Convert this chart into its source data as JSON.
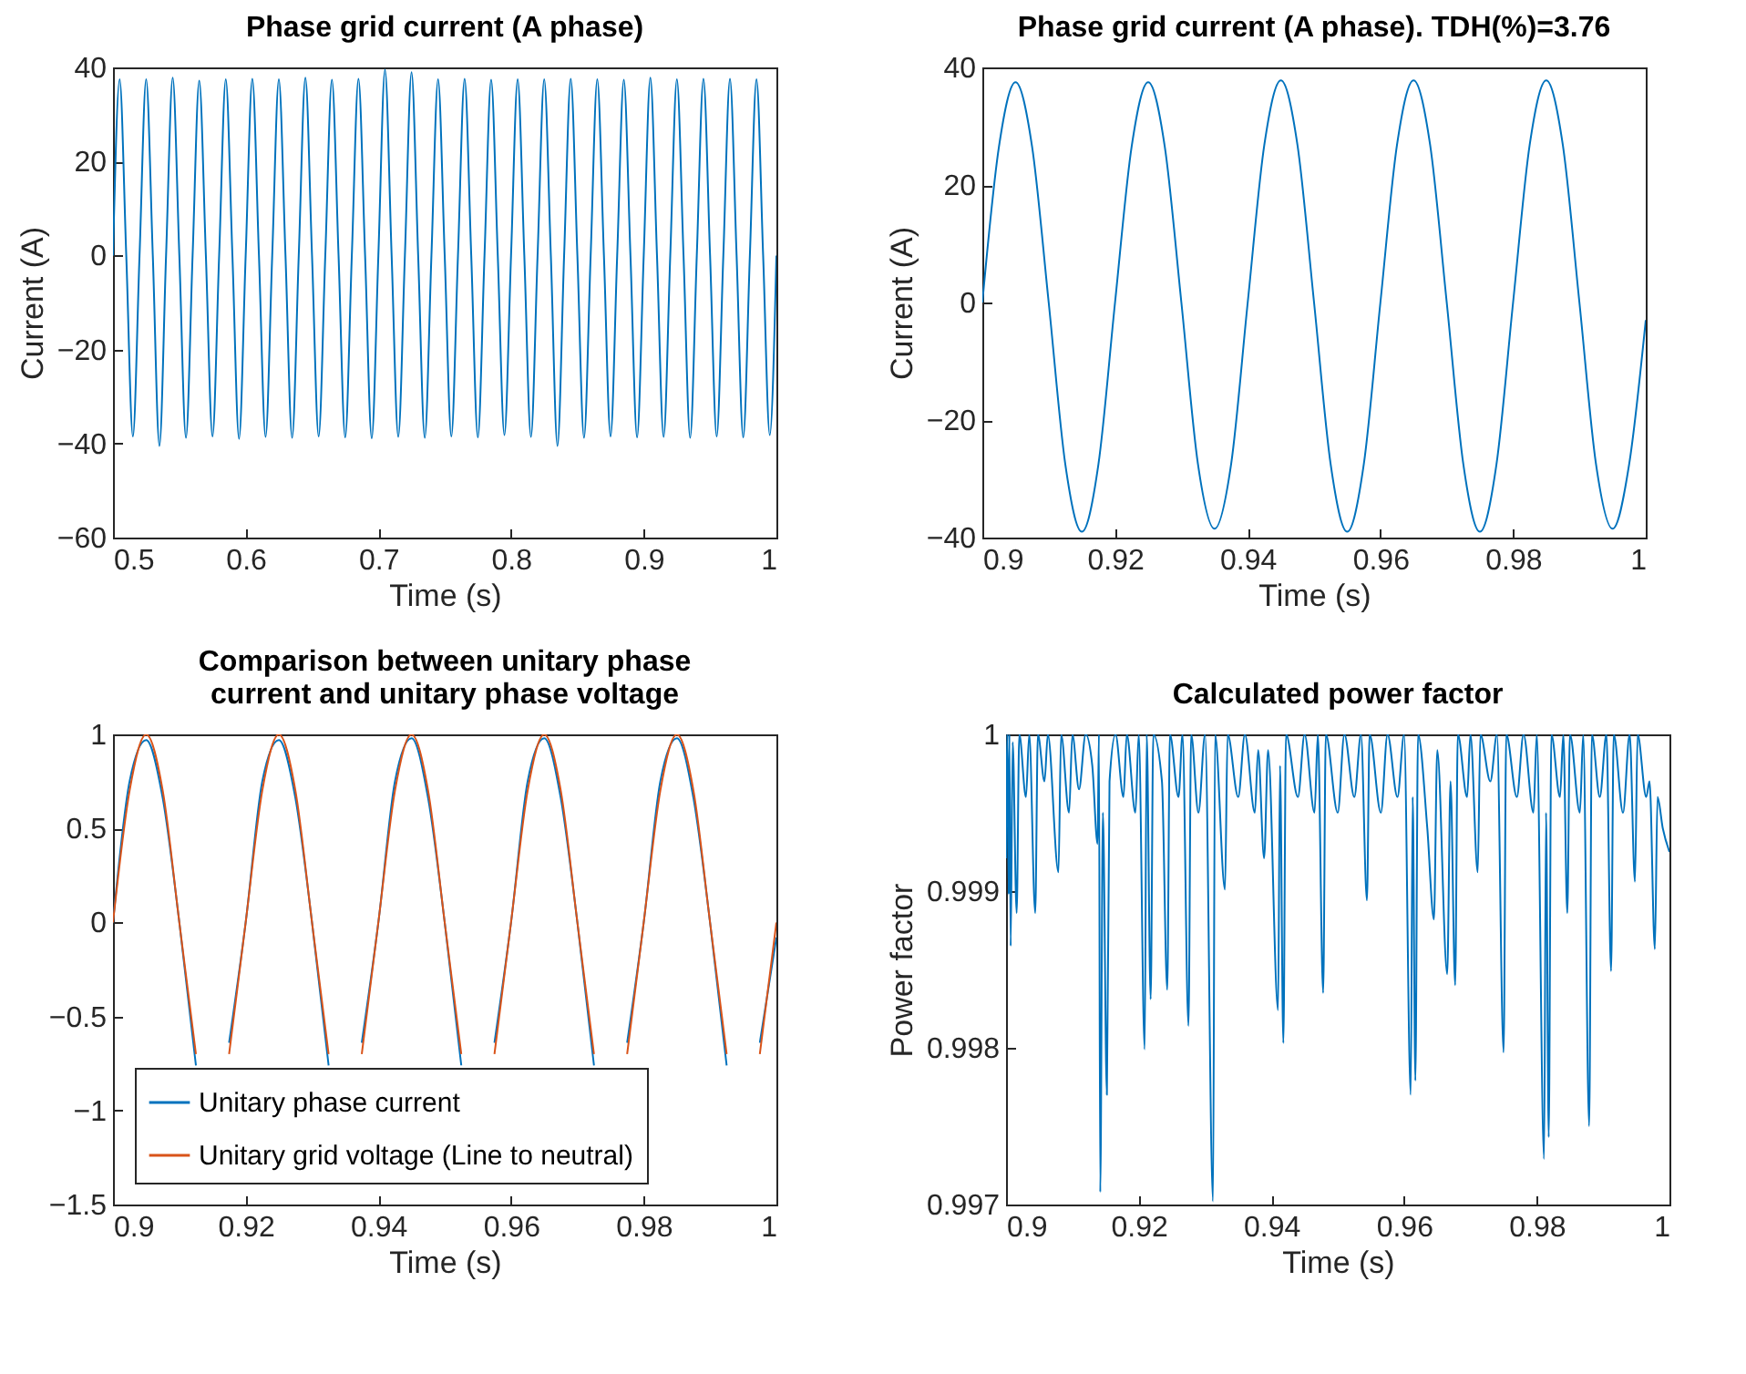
{
  "chart_data": [
    {
      "type": "line",
      "title": "Phase grid current (A phase)",
      "xlabel": "Time (s)",
      "ylabel": "Current (A)",
      "x": [
        0.5,
        0.505,
        0.51,
        0.515,
        0.52,
        0.525,
        0.53,
        0.535,
        0.54,
        0.545,
        0.55,
        0.555,
        0.56,
        0.565,
        0.57,
        0.575,
        0.58,
        0.585,
        0.59,
        0.595,
        0.6,
        0.605,
        0.61,
        0.615,
        0.62,
        0.625,
        0.63,
        0.635,
        0.64,
        0.645,
        0.65,
        0.655,
        0.66,
        0.665,
        0.67,
        0.675,
        0.68,
        0.685,
        0.69,
        0.695,
        0.7,
        0.705,
        0.71,
        0.715,
        0.72,
        0.725,
        0.73,
        0.735,
        0.74,
        0.745,
        0.75,
        0.755,
        0.76,
        0.765,
        0.77,
        0.775,
        0.78,
        0.785,
        0.79,
        0.795,
        0.8,
        0.805,
        0.81,
        0.815,
        0.82,
        0.825,
        0.83,
        0.835,
        0.84,
        0.845,
        0.85,
        0.855,
        0.86,
        0.865,
        0.87,
        0.875,
        0.88,
        0.885,
        0.89,
        0.895,
        0.9,
        0.905,
        0.91,
        0.915,
        0.92,
        0.925,
        0.93,
        0.935,
        0.94,
        0.945,
        0.95,
        0.955,
        0.96,
        0.965,
        0.97,
        0.975,
        0.98,
        0.985,
        0.99,
        0.995,
        1
      ],
      "series": [
        {
          "color": "#0072bd",
          "values": [
            0,
            37.5,
            0,
            -38.5,
            0,
            37.5,
            0,
            -40.5,
            0,
            37.8,
            0,
            -38.8,
            0,
            37.2,
            0,
            -38.5,
            0,
            37.5,
            0,
            -39,
            0,
            37.6,
            0,
            -38.6,
            0,
            37.5,
            0,
            -38.8,
            0,
            37.8,
            0,
            -38.5,
            0,
            37.4,
            0,
            -38.7,
            0,
            37.6,
            0,
            -38.9,
            0,
            39.5,
            0,
            -38.6,
            0,
            39,
            0,
            -38.8,
            0,
            37.5,
            0,
            -38.5,
            0,
            37.6,
            0,
            -38.7,
            0,
            37.4,
            0,
            -38.2,
            0,
            37.5,
            0,
            -38.6,
            0,
            37.5,
            0,
            -40.5,
            0,
            37.6,
            0,
            -38.8,
            0,
            37.5,
            0,
            -38.5,
            0,
            37.4,
            0,
            -38.7,
            0,
            37.8,
            0,
            -38.6,
            0,
            37.5,
            0,
            -38.8,
            0,
            37.6,
            0,
            -38.5,
            0,
            37.6,
            0,
            -38.7,
            0,
            37.5,
            0,
            -38.2,
            0
          ]
        }
      ],
      "xlim": [
        0.5,
        1
      ],
      "xticks": [
        0.5,
        0.6,
        0.7,
        0.8,
        0.9,
        1
      ],
      "ylim": [
        -60,
        40
      ],
      "yticks": [
        -60,
        -40,
        -20,
        0,
        20,
        40
      ]
    },
    {
      "type": "line",
      "title": "Phase grid current (A phase). TDH(%)=3.76",
      "xlabel": "Time (s)",
      "ylabel": "Current (A)",
      "x": [
        0.9,
        0.9025,
        0.905,
        0.9075,
        0.91,
        0.9125,
        0.915,
        0.9175,
        0.92,
        0.9225,
        0.925,
        0.9275,
        0.93,
        0.9325,
        0.935,
        0.9375,
        0.94,
        0.9425,
        0.945,
        0.9475,
        0.95,
        0.9525,
        0.955,
        0.9575,
        0.96,
        0.9625,
        0.965,
        0.9675,
        0.97,
        0.9725,
        0.975,
        0.9775,
        0.98,
        0.9825,
        0.985,
        0.9875,
        0.99,
        0.9925,
        0.995,
        0.9975,
        1
      ],
      "series": [
        {
          "color": "#0072bd",
          "values": [
            0,
            26.5,
            37.5,
            26.5,
            0,
            -27.5,
            -39,
            -27.5,
            0,
            26.5,
            37.5,
            26.5,
            0,
            -27.5,
            -38.5,
            -27.5,
            0,
            26.8,
            37.8,
            26.8,
            0,
            -27.5,
            -39,
            -27.5,
            0,
            26.8,
            37.8,
            26.8,
            0,
            -27.5,
            -39,
            -27.5,
            0,
            26.8,
            37.8,
            26.8,
            0,
            -27.5,
            -38.5,
            -27.5,
            -3
          ]
        }
      ],
      "xlim": [
        0.9,
        1
      ],
      "xticks": [
        0.9,
        0.92,
        0.94,
        0.96,
        0.98,
        1
      ],
      "ylim": [
        -40,
        40
      ],
      "yticks": [
        -40,
        -20,
        0,
        20,
        40
      ]
    },
    {
      "type": "line",
      "title": "Comparison between unitary phase\ncurrent and unitary phase voltage",
      "xlabel": "Time (s)",
      "legend": "bottom left",
      "x": [
        0.9,
        0.9025,
        0.905,
        0.9075,
        0.91,
        0.9125,
        0.915,
        0.9175,
        0.92,
        0.9225,
        0.925,
        0.9275,
        0.93,
        0.9325,
        0.935,
        0.9375,
        0.94,
        0.9425,
        0.945,
        0.9475,
        0.95,
        0.9525,
        0.955,
        0.9575,
        0.96,
        0.9625,
        0.965,
        0.9675,
        0.97,
        0.9725,
        0.975,
        0.9775,
        0.98,
        0.9825,
        0.985,
        0.9875,
        0.99,
        0.9925,
        0.995,
        0.9975,
        1
      ],
      "series": [
        {
          "name": "Unitary phase current",
          "color": "#0072bd",
          "values": [
            0,
            0.75,
            0.97,
            0.66,
            0,
            -0.76,
            null,
            -0.64,
            0,
            0.75,
            0.97,
            0.66,
            0,
            -0.76,
            null,
            -0.64,
            0,
            0.75,
            0.98,
            0.66,
            0,
            -0.76,
            null,
            -0.64,
            0,
            0.75,
            0.98,
            0.66,
            0,
            -0.76,
            null,
            -0.64,
            0,
            0.75,
            0.98,
            0.66,
            0,
            -0.76,
            null,
            -0.64,
            -0.08
          ]
        },
        {
          "name": "Unitary grid voltage (Line to neutral)",
          "color": "#d95319",
          "values": [
            0,
            0.7,
            1,
            0.7,
            0,
            -0.7,
            null,
            -0.7,
            0,
            0.7,
            1,
            0.7,
            0,
            -0.7,
            null,
            -0.7,
            0,
            0.7,
            1,
            0.7,
            0,
            -0.7,
            null,
            -0.7,
            0,
            0.7,
            1,
            0.7,
            0,
            -0.7,
            null,
            -0.7,
            0,
            0.7,
            1,
            0.7,
            0,
            -0.7,
            null,
            -0.7,
            0
          ]
        }
      ],
      "xlim": [
        0.9,
        1
      ],
      "xticks": [
        0.9,
        0.92,
        0.94,
        0.96,
        0.98,
        1
      ],
      "ylim": [
        -1.5,
        1
      ],
      "yticks": [
        -1.5,
        -1,
        -0.5,
        0,
        0.5,
        1
      ]
    },
    {
      "type": "line",
      "title": "Calculated power factor",
      "xlabel": "Time (s)",
      "ylabel": "Power factor",
      "x": [
        0.9,
        0.9002,
        0.9004,
        0.9005,
        0.9007,
        0.901,
        0.9016,
        0.902,
        0.903,
        0.9035,
        0.9044,
        0.9048,
        0.9058,
        0.9063,
        0.9079,
        0.9083,
        0.9095,
        0.91,
        0.911,
        0.912,
        0.913,
        0.9138,
        0.914,
        0.9142,
        0.9146,
        0.9152,
        0.9156,
        0.9165,
        0.9177,
        0.9182,
        0.9195,
        0.92,
        0.9209,
        0.9212,
        0.9218,
        0.9222,
        0.9235,
        0.9243,
        0.9247,
        0.926,
        0.9266,
        0.9275,
        0.9279,
        0.929,
        0.93,
        0.9312,
        0.9315,
        0.933,
        0.9334,
        0.935,
        0.936,
        0.9375,
        0.938,
        0.9389,
        0.9395,
        0.941,
        0.9413,
        0.9418,
        0.9422,
        0.944,
        0.945,
        0.9465,
        0.947,
        0.9478,
        0.9482,
        0.95,
        0.951,
        0.9525,
        0.9535,
        0.9544,
        0.9548,
        0.9565,
        0.9575,
        0.959,
        0.96,
        0.961,
        0.9613,
        0.9617,
        0.9621,
        0.9635,
        0.9645,
        0.965,
        0.9665,
        0.967,
        0.9677,
        0.9681,
        0.9695,
        0.97,
        0.9711,
        0.9715,
        0.973,
        0.974,
        0.975,
        0.9754,
        0.977,
        0.978,
        0.9795,
        0.98,
        0.9811,
        0.9814,
        0.9818,
        0.9822,
        0.9835,
        0.984,
        0.9846,
        0.985,
        0.9865,
        0.987,
        0.9879,
        0.9883,
        0.9895,
        0.9905,
        0.9912,
        0.9916,
        0.993,
        0.994,
        0.9948,
        0.9952,
        0.9965,
        0.997,
        0.9978,
        0.9982,
        0.999,
        1
      ],
      "series": [
        {
          "color": "#0072bd",
          "values": [
            0.99921,
            1,
            0.99898,
            1,
            0.99865,
            0.99995,
            0.99886,
            1,
            0.9996,
            1,
            0.99886,
            1,
            0.9997,
            1,
            0.99912,
            1,
            0.9995,
            1,
            0.99965,
            1,
            0.9998,
            0.9993,
            1,
            0.99708,
            0.9995,
            0.9977,
            0.9997,
            1,
            0.9996,
            1,
            0.9995,
            1,
            0.99799,
            1,
            0.99831,
            1,
            0.9997,
            0.99837,
            1,
            0.9996,
            1,
            0.99814,
            1,
            0.9995,
            1,
            0.99702,
            1,
            0.99901,
            1,
            0.9996,
            1,
            0.9995,
            0.9999,
            0.99921,
            0.9999,
            0.99824,
            0.9998,
            0.99803,
            1,
            0.9996,
            1,
            0.9995,
            1,
            0.99835,
            1,
            0.9995,
            1,
            0.9996,
            1,
            0.99894,
            1,
            0.9995,
            1,
            0.9996,
            1,
            0.9977,
            0.9996,
            0.99779,
            1,
            0.9994,
            0.99882,
            0.9999,
            0.99847,
            0.9997,
            0.9984,
            1,
            0.9996,
            1,
            0.99912,
            1,
            0.9997,
            1,
            0.99797,
            1,
            0.9996,
            1,
            0.9995,
            1,
            0.99729,
            0.9995,
            0.99743,
            1,
            0.9996,
            1,
            0.99886,
            1,
            0.9995,
            1,
            0.9975,
            1,
            0.9996,
            1,
            0.99849,
            1,
            0.9995,
            1,
            0.99906,
            1,
            0.9996,
            0.9997,
            0.99863,
            0.9996,
            0.9994,
            0.99925
          ]
        }
      ],
      "xlim": [
        0.9,
        1
      ],
      "xticks": [
        0.9,
        0.92,
        0.94,
        0.96,
        0.98,
        1
      ],
      "ylim": [
        0.997,
        1
      ],
      "yticks": [
        0.997,
        0.998,
        0.999,
        1
      ]
    }
  ]
}
